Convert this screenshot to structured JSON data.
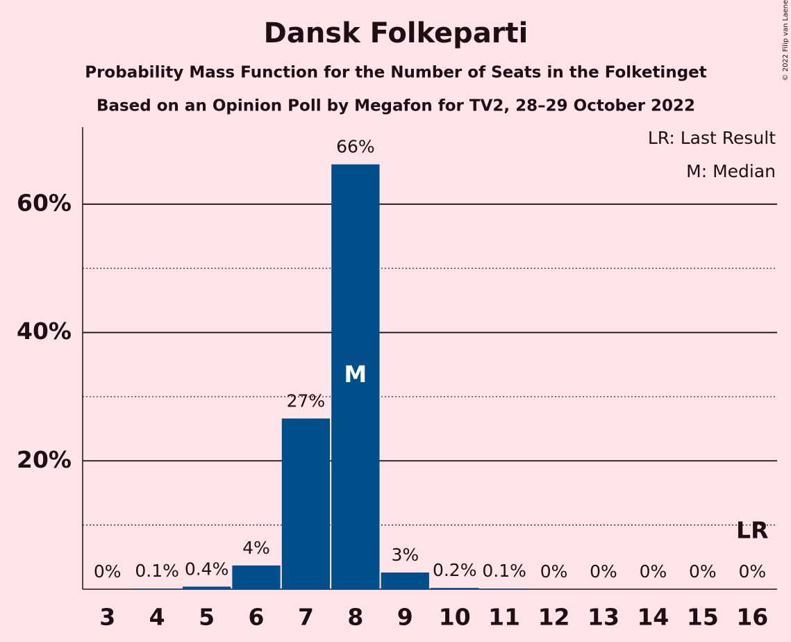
{
  "chart_data": {
    "type": "bar",
    "title": "Dansk Folkeparti",
    "subtitle": "Probability Mass Function for the Number of Seats in the Folketinget",
    "subtitle2": "Based on an Opinion Poll by Megafon for TV2, 28–29 October 2022",
    "copyright": "© 2022 Filip van Laenen",
    "legend": [
      "LR: Last Result",
      "M: Median"
    ],
    "categories": [
      "3",
      "4",
      "5",
      "6",
      "7",
      "8",
      "9",
      "10",
      "11",
      "12",
      "13",
      "14",
      "15",
      "16"
    ],
    "values": [
      0,
      0.1,
      0.4,
      3.7,
      26.6,
      66.2,
      2.6,
      0.2,
      0.1,
      0,
      0,
      0,
      0,
      0
    ],
    "value_labels": [
      "0%",
      "0.1%",
      "0.4%",
      "4%",
      "27%",
      "66%",
      "3%",
      "0.2%",
      "0.1%",
      "0%",
      "0%",
      "0%",
      "0%",
      "0%"
    ],
    "color": "#004f8a",
    "ylim": [
      0,
      72
    ],
    "yticks": [
      {
        "value": 20,
        "label": "20%"
      },
      {
        "value": 40,
        "label": "40%"
      },
      {
        "value": 60,
        "label": "60%"
      }
    ],
    "minor_yticks": [
      10,
      30,
      50
    ],
    "grid": true,
    "annotations": [
      {
        "text": "M",
        "category": "8"
      },
      {
        "text": "LR",
        "category": "16"
      }
    ]
  }
}
